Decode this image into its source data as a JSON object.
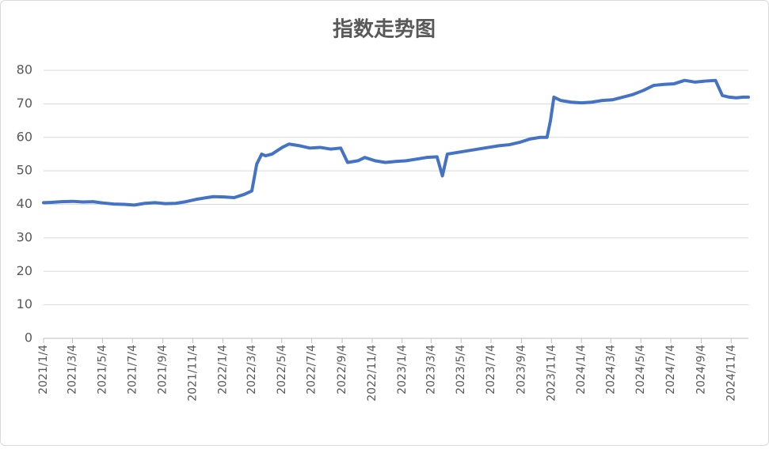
{
  "chart_data": {
    "type": "line",
    "title": "指数走势图",
    "x": [
      "2021/1/4",
      "2021/1/20",
      "2021/2/10",
      "2021/3/4",
      "2021/3/25",
      "2021/4/15",
      "2021/5/6",
      "2021/5/27",
      "2021/6/17",
      "2021/7/8",
      "2021/7/29",
      "2021/8/19",
      "2021/9/9",
      "2021/9/30",
      "2021/10/21",
      "2021/11/11",
      "2021/12/2",
      "2021/12/16",
      "2022/1/6",
      "2022/1/27",
      "2022/2/17",
      "2022/3/4",
      "2022/3/14",
      "2022/3/24",
      "2022/4/1",
      "2022/4/14",
      "2022/5/5",
      "2022/5/19",
      "2022/6/9",
      "2022/6/30",
      "2022/7/21",
      "2022/8/11",
      "2022/9/1",
      "2022/9/15",
      "2022/10/6",
      "2022/10/20",
      "2022/11/10",
      "2022/12/1",
      "2022/12/22",
      "2023/1/12",
      "2023/2/2",
      "2023/2/23",
      "2023/3/16",
      "2023/3/27",
      "2023/4/6",
      "2023/4/27",
      "2023/5/18",
      "2023/6/8",
      "2023/6/29",
      "2023/7/20",
      "2023/8/10",
      "2023/8/31",
      "2023/9/21",
      "2023/10/12",
      "2023/10/26",
      "2023/11/2",
      "2023/11/9",
      "2023/11/23",
      "2023/12/14",
      "2024/1/4",
      "2024/1/25",
      "2024/2/15",
      "2024/3/7",
      "2024/3/28",
      "2024/4/18",
      "2024/5/9",
      "2024/5/30",
      "2024/6/20",
      "2024/7/11",
      "2024/8/1",
      "2024/8/22",
      "2024/9/12",
      "2024/10/3",
      "2024/10/17",
      "2024/10/31",
      "2024/11/14",
      "2024/11/28",
      "2024/12/9"
    ],
    "series": [
      {
        "name": "指数",
        "color": "#4472c4",
        "values": [
          40.5,
          40.6,
          40.8,
          40.9,
          40.7,
          40.8,
          40.4,
          40.1,
          40.0,
          39.8,
          40.3,
          40.5,
          40.2,
          40.3,
          40.8,
          41.5,
          42.0,
          42.3,
          42.2,
          42.0,
          43.0,
          44.0,
          52.0,
          55.0,
          54.5,
          55.0,
          57.0,
          58.0,
          57.5,
          56.8,
          57.0,
          56.5,
          56.8,
          52.5,
          53.0,
          54.0,
          53.0,
          52.5,
          52.8,
          53.0,
          53.5,
          54.0,
          54.2,
          48.5,
          55.0,
          55.5,
          56.0,
          56.5,
          57.0,
          57.5,
          57.8,
          58.5,
          59.5,
          60.0,
          60.0,
          65.0,
          72.0,
          71.0,
          70.5,
          70.3,
          70.5,
          71.0,
          71.2,
          72.0,
          72.8,
          74.0,
          75.5,
          75.8,
          76.0,
          77.0,
          76.5,
          76.8,
          77.0,
          72.5,
          72.0,
          71.8,
          72.0,
          72.0
        ]
      }
    ],
    "xlim": [
      "2021/1/4",
      "2024/12/9"
    ],
    "xticks": [
      "2021/1/4",
      "2021/3/4",
      "2021/5/4",
      "2021/7/4",
      "2021/9/4",
      "2021/11/4",
      "2022/1/4",
      "2022/3/4",
      "2022/5/4",
      "2022/7/4",
      "2022/9/4",
      "2022/11/4",
      "2023/1/4",
      "2023/3/4",
      "2023/5/4",
      "2023/7/4",
      "2023/9/4",
      "2023/11/4",
      "2024/1/4",
      "2024/3/4",
      "2024/5/4",
      "2024/7/4",
      "2024/9/4",
      "2024/11/4"
    ],
    "ylim": [
      0,
      80
    ],
    "yticks": [
      0,
      10,
      20,
      30,
      40,
      50,
      60,
      70,
      80
    ],
    "grid": true
  }
}
